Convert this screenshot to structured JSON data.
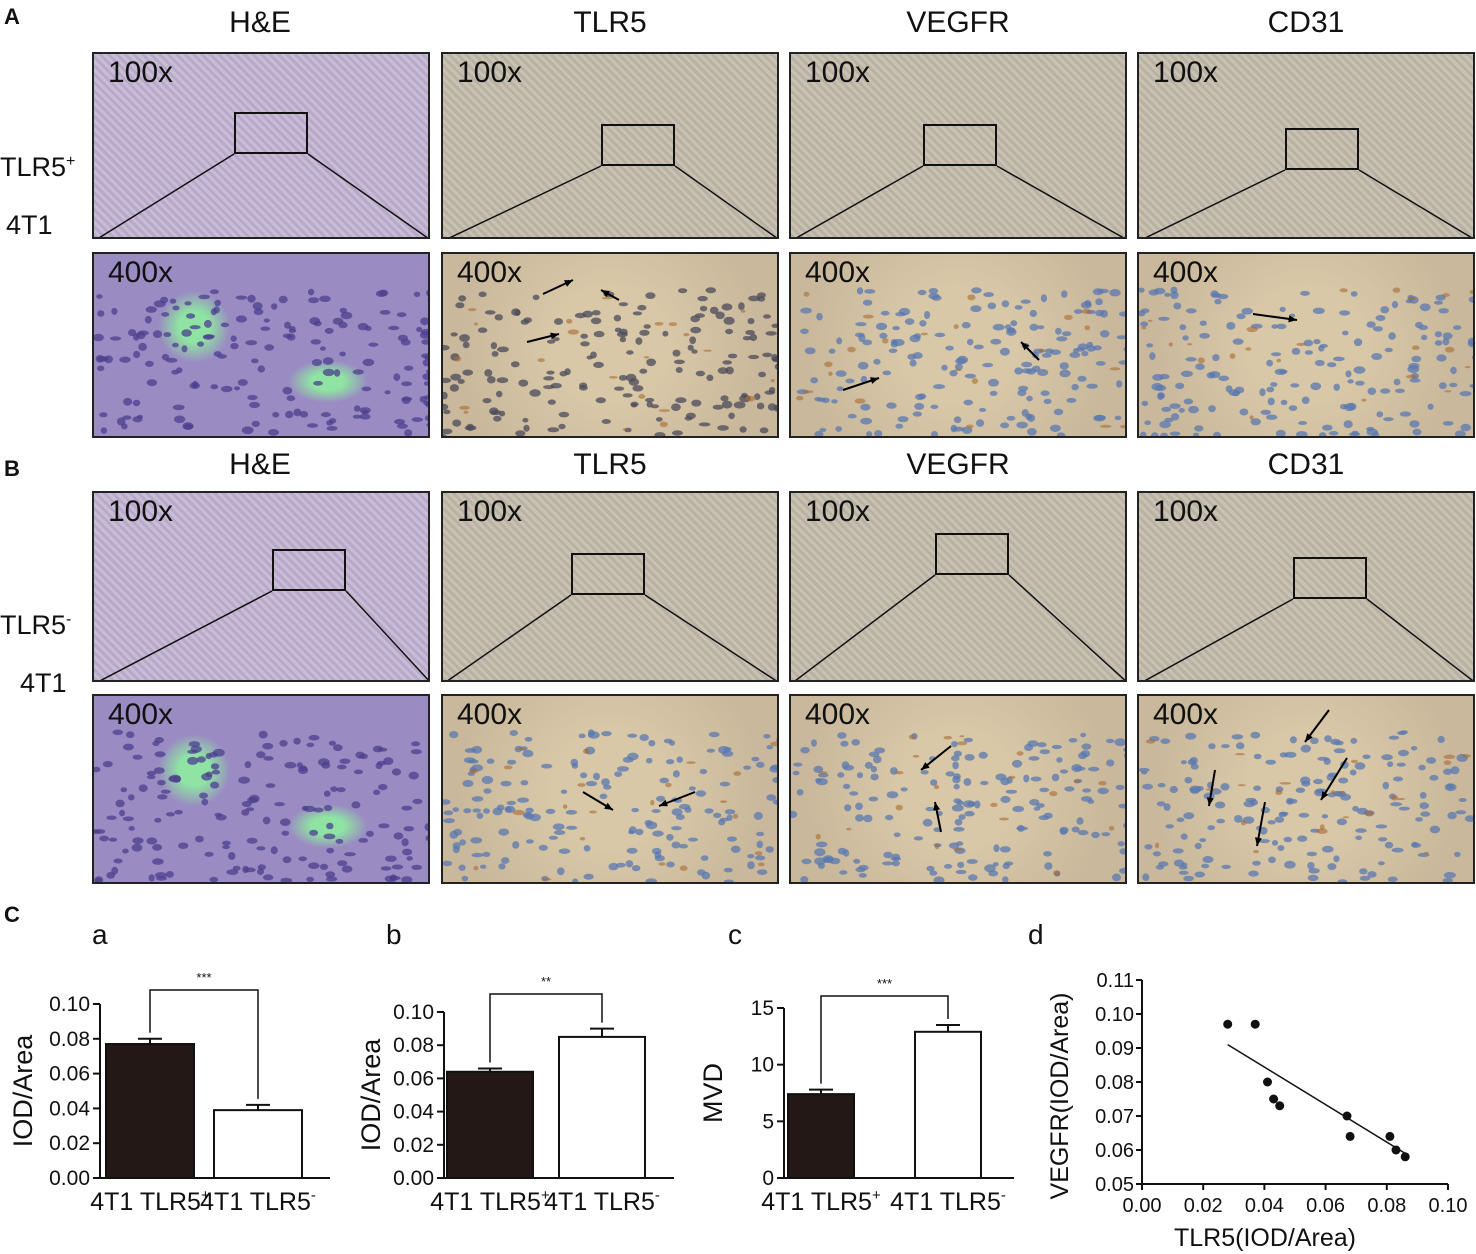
{
  "panels": {
    "A": {
      "letter": "A",
      "row_label_main": "TLR5",
      "row_label_sup": "+",
      "row_label_sub": "4T1",
      "columns": [
        "H&E",
        "TLR5",
        "VEGFR",
        "CD31"
      ],
      "low_mag": "100x",
      "high_mag": "400x"
    },
    "B": {
      "letter": "B",
      "row_label_main": "TLR5",
      "row_label_sup": "-",
      "row_label_sub": "4T1",
      "columns": [
        "H&E",
        "TLR5",
        "VEGFR",
        "CD31"
      ],
      "low_mag": "100x",
      "high_mag": "400x"
    },
    "C": {
      "letter": "C"
    }
  },
  "colors": {
    "he_low": "#b7a9c9",
    "he_high": "#9a8bc2",
    "he_highlight": "#8fe3a3",
    "ihc_low": "#b9b2a3",
    "ihc_high": "#c9b89b",
    "ihc_nuclei": "#5a78b0",
    "brown_stain": "#a86a32",
    "bar_dark": "#231815",
    "bar_light": "#ffffff"
  },
  "chart_data": [
    {
      "id": "a",
      "type": "bar",
      "sub_label": "a",
      "categories": [
        "4T1 TLR5+",
        "4T1 TLR5-"
      ],
      "category_main": [
        "4T1  TLR5",
        "4T1  TLR5"
      ],
      "category_sup": [
        "+",
        "-"
      ],
      "values": [
        0.077,
        0.039
      ],
      "errors": [
        0.003,
        0.003
      ],
      "bar_colors": [
        "#231815",
        "#ffffff"
      ],
      "ylabel": "IOD/Area",
      "ylim": [
        0,
        0.1
      ],
      "yticks": [
        "0.00",
        "0.02",
        "0.04",
        "0.06",
        "0.08",
        "0.10"
      ],
      "significance": "***"
    },
    {
      "id": "b",
      "type": "bar",
      "sub_label": "b",
      "categories": [
        "4T1 TLR5+",
        "4T1 TLR5-"
      ],
      "category_main": [
        "4T1  TLR5",
        "4T1  TLR5"
      ],
      "category_sup": [
        "+",
        "-"
      ],
      "values": [
        0.064,
        0.085
      ],
      "errors": [
        0.002,
        0.005
      ],
      "bar_colors": [
        "#231815",
        "#ffffff"
      ],
      "ylabel": "IOD/Area",
      "ylim": [
        0,
        0.1
      ],
      "yticks": [
        "0.00",
        "0.02",
        "0.04",
        "0.06",
        "0.08",
        "0.10"
      ],
      "significance": "**"
    },
    {
      "id": "c",
      "type": "bar",
      "sub_label": "c",
      "categories": [
        "4T1 TLR5+",
        "4T1 TLR5-"
      ],
      "category_main": [
        "4T1  TLR5",
        "4T1  TLR5"
      ],
      "category_sup": [
        "+",
        "-"
      ],
      "values": [
        7.4,
        12.9
      ],
      "errors": [
        0.4,
        0.6
      ],
      "bar_colors": [
        "#231815",
        "#ffffff"
      ],
      "ylabel": "MVD",
      "ylim": [
        0,
        15
      ],
      "yticks": [
        "0",
        "5",
        "10",
        "15"
      ],
      "significance": "***"
    },
    {
      "id": "d",
      "type": "scatter",
      "sub_label": "d",
      "points": [
        [
          0.028,
          0.097
        ],
        [
          0.037,
          0.097
        ],
        [
          0.041,
          0.08
        ],
        [
          0.043,
          0.075
        ],
        [
          0.045,
          0.073
        ],
        [
          0.067,
          0.07
        ],
        [
          0.068,
          0.064
        ],
        [
          0.081,
          0.064
        ],
        [
          0.083,
          0.06
        ],
        [
          0.086,
          0.058
        ]
      ],
      "fit_line": [
        [
          0.028,
          0.091
        ],
        [
          0.086,
          0.059
        ]
      ],
      "xlabel": "TLR5(IOD/Area)",
      "ylabel": "VEGFR(IOD/Area)",
      "xlim": [
        0.0,
        0.1
      ],
      "ylim": [
        0.05,
        0.11
      ],
      "xticks": [
        "0.00",
        "0.02",
        "0.04",
        "0.06",
        "0.08",
        "0.10"
      ],
      "yticks": [
        "0.05",
        "0.06",
        "0.07",
        "0.08",
        "0.09",
        "0.10",
        "0.11"
      ]
    }
  ]
}
